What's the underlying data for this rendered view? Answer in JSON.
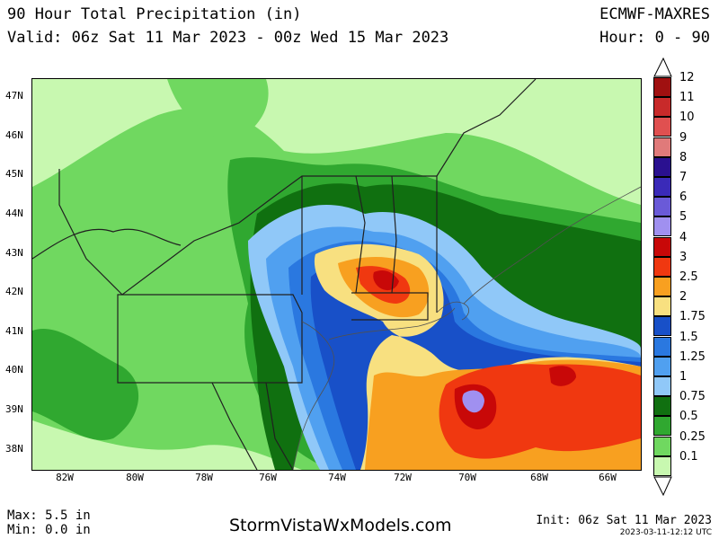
{
  "header": {
    "title": "90 Hour Total Precipitation (in)",
    "valid": "Valid: 06z Sat 11 Mar 2023 - 00z Wed 15 Mar 2023",
    "model": "ECMWF-MAXRES",
    "hour": "Hour: 0 - 90"
  },
  "map": {
    "lat_labels": [
      "47N",
      "46N",
      "45N",
      "44N",
      "43N",
      "42N",
      "41N",
      "40N",
      "39N",
      "38N"
    ],
    "lon_labels": [
      "82W",
      "80W",
      "78W",
      "76W",
      "74W",
      "72W",
      "70W",
      "68W",
      "66W"
    ],
    "lat_range": [
      37.5,
      47.5
    ],
    "lon_range": [
      -83,
      -65.5
    ]
  },
  "legend": {
    "levels": [
      "12",
      "11",
      "10",
      "9",
      "8",
      "7",
      "6",
      "5",
      "4",
      "3",
      "2.5",
      "2",
      "1.75",
      "1.5",
      "1.25",
      "1",
      "0.75",
      "0.5",
      "0.25",
      "0.1"
    ],
    "colors": [
      "#a01010",
      "#c82a2a",
      "#e05050",
      "#e07a7a",
      "#2a1090",
      "#3a2ab8",
      "#6a5ad8",
      "#a090f0",
      "#c80808",
      "#f03810",
      "#f8a020",
      "#f8e080",
      "#1850c8",
      "#2a78e0",
      "#50a0f0",
      "#90c8f8",
      "#107010",
      "#30a830",
      "#70d860",
      "#c8f8b0"
    ]
  },
  "footer": {
    "max": "Max: 5.5 in",
    "min": "Min: 0.0 in",
    "site": "StormVistaWxModels.com",
    "init": "Init: 06z Sat 11 Mar 2023",
    "stamp": "2023-03-11-12:12 UTC"
  }
}
